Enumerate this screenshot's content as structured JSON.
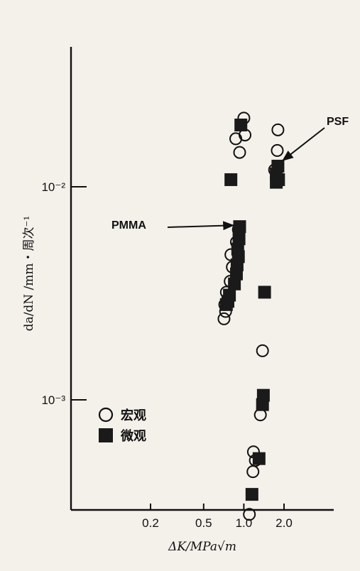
{
  "chart_data": {
    "type": "scatter",
    "xlabel": "ΔK/MPa√m",
    "ylabel": "da/dN /mm・周次⁻¹",
    "x_scale": "log",
    "y_scale": "log",
    "xlim": [
      0.2,
      2.5
    ],
    "ylim": [
      0.00025,
      0.025
    ],
    "x_ticks": [
      {
        "value": 0.2,
        "label": "0.2"
      },
      {
        "value": 0.5,
        "label": "0.5"
      },
      {
        "value": 1.0,
        "label": "1.0"
      },
      {
        "value": 2.0,
        "label": "2.0"
      }
    ],
    "y_ticks": [
      {
        "value": 0.01,
        "label": "10⁻²"
      },
      {
        "value": 0.001,
        "label": "10⁻³"
      }
    ],
    "annotations": [
      {
        "text": "PSF",
        "x": 1.82,
        "y": 0.0125
      },
      {
        "text": "PMMA",
        "x": 0.92,
        "y": 0.0068
      }
    ],
    "series": [
      {
        "name": "宏观",
        "marker": "open-circle",
        "points": [
          {
            "x": 1.0,
            "y": 0.021
          },
          {
            "x": 1.8,
            "y": 0.0185
          },
          {
            "x": 0.93,
            "y": 0.0145
          },
          {
            "x": 1.78,
            "y": 0.0148
          },
          {
            "x": 1.02,
            "y": 0.0175
          },
          {
            "x": 0.87,
            "y": 0.0168
          },
          {
            "x": 1.7,
            "y": 0.012
          },
          {
            "x": 0.91,
            "y": 0.0063
          },
          {
            "x": 0.88,
            "y": 0.0055
          },
          {
            "x": 0.8,
            "y": 0.0048
          },
          {
            "x": 0.82,
            "y": 0.0042
          },
          {
            "x": 0.88,
            "y": 0.004
          },
          {
            "x": 0.79,
            "y": 0.0036
          },
          {
            "x": 0.74,
            "y": 0.0032
          },
          {
            "x": 0.72,
            "y": 0.0028
          },
          {
            "x": 0.73,
            "y": 0.0026
          },
          {
            "x": 0.71,
            "y": 0.0024
          },
          {
            "x": 1.38,
            "y": 0.0017
          },
          {
            "x": 1.33,
            "y": 0.00085
          },
          {
            "x": 1.18,
            "y": 0.00057
          },
          {
            "x": 1.22,
            "y": 0.00052
          },
          {
            "x": 1.17,
            "y": 0.00046
          },
          {
            "x": 1.1,
            "y": 0.00029
          }
        ]
      },
      {
        "name": "微观",
        "marker": "filled-square",
        "points": [
          {
            "x": 0.95,
            "y": 0.0195
          },
          {
            "x": 1.8,
            "y": 0.0125
          },
          {
            "x": 1.75,
            "y": 0.0115
          },
          {
            "x": 1.82,
            "y": 0.0108
          },
          {
            "x": 0.8,
            "y": 0.0108
          },
          {
            "x": 1.75,
            "y": 0.0105
          },
          {
            "x": 0.93,
            "y": 0.0065
          },
          {
            "x": 0.92,
            "y": 0.0057
          },
          {
            "x": 0.9,
            "y": 0.0051
          },
          {
            "x": 0.91,
            "y": 0.0047
          },
          {
            "x": 0.89,
            "y": 0.0043
          },
          {
            "x": 0.88,
            "y": 0.0039
          },
          {
            "x": 0.85,
            "y": 0.0035
          },
          {
            "x": 0.78,
            "y": 0.0031
          },
          {
            "x": 0.76,
            "y": 0.0029
          },
          {
            "x": 0.74,
            "y": 0.0028
          },
          {
            "x": 1.43,
            "y": 0.0032
          },
          {
            "x": 1.4,
            "y": 0.00105
          },
          {
            "x": 1.38,
            "y": 0.00095
          },
          {
            "x": 1.3,
            "y": 0.00053
          },
          {
            "x": 1.15,
            "y": 0.00036
          }
        ]
      }
    ]
  }
}
